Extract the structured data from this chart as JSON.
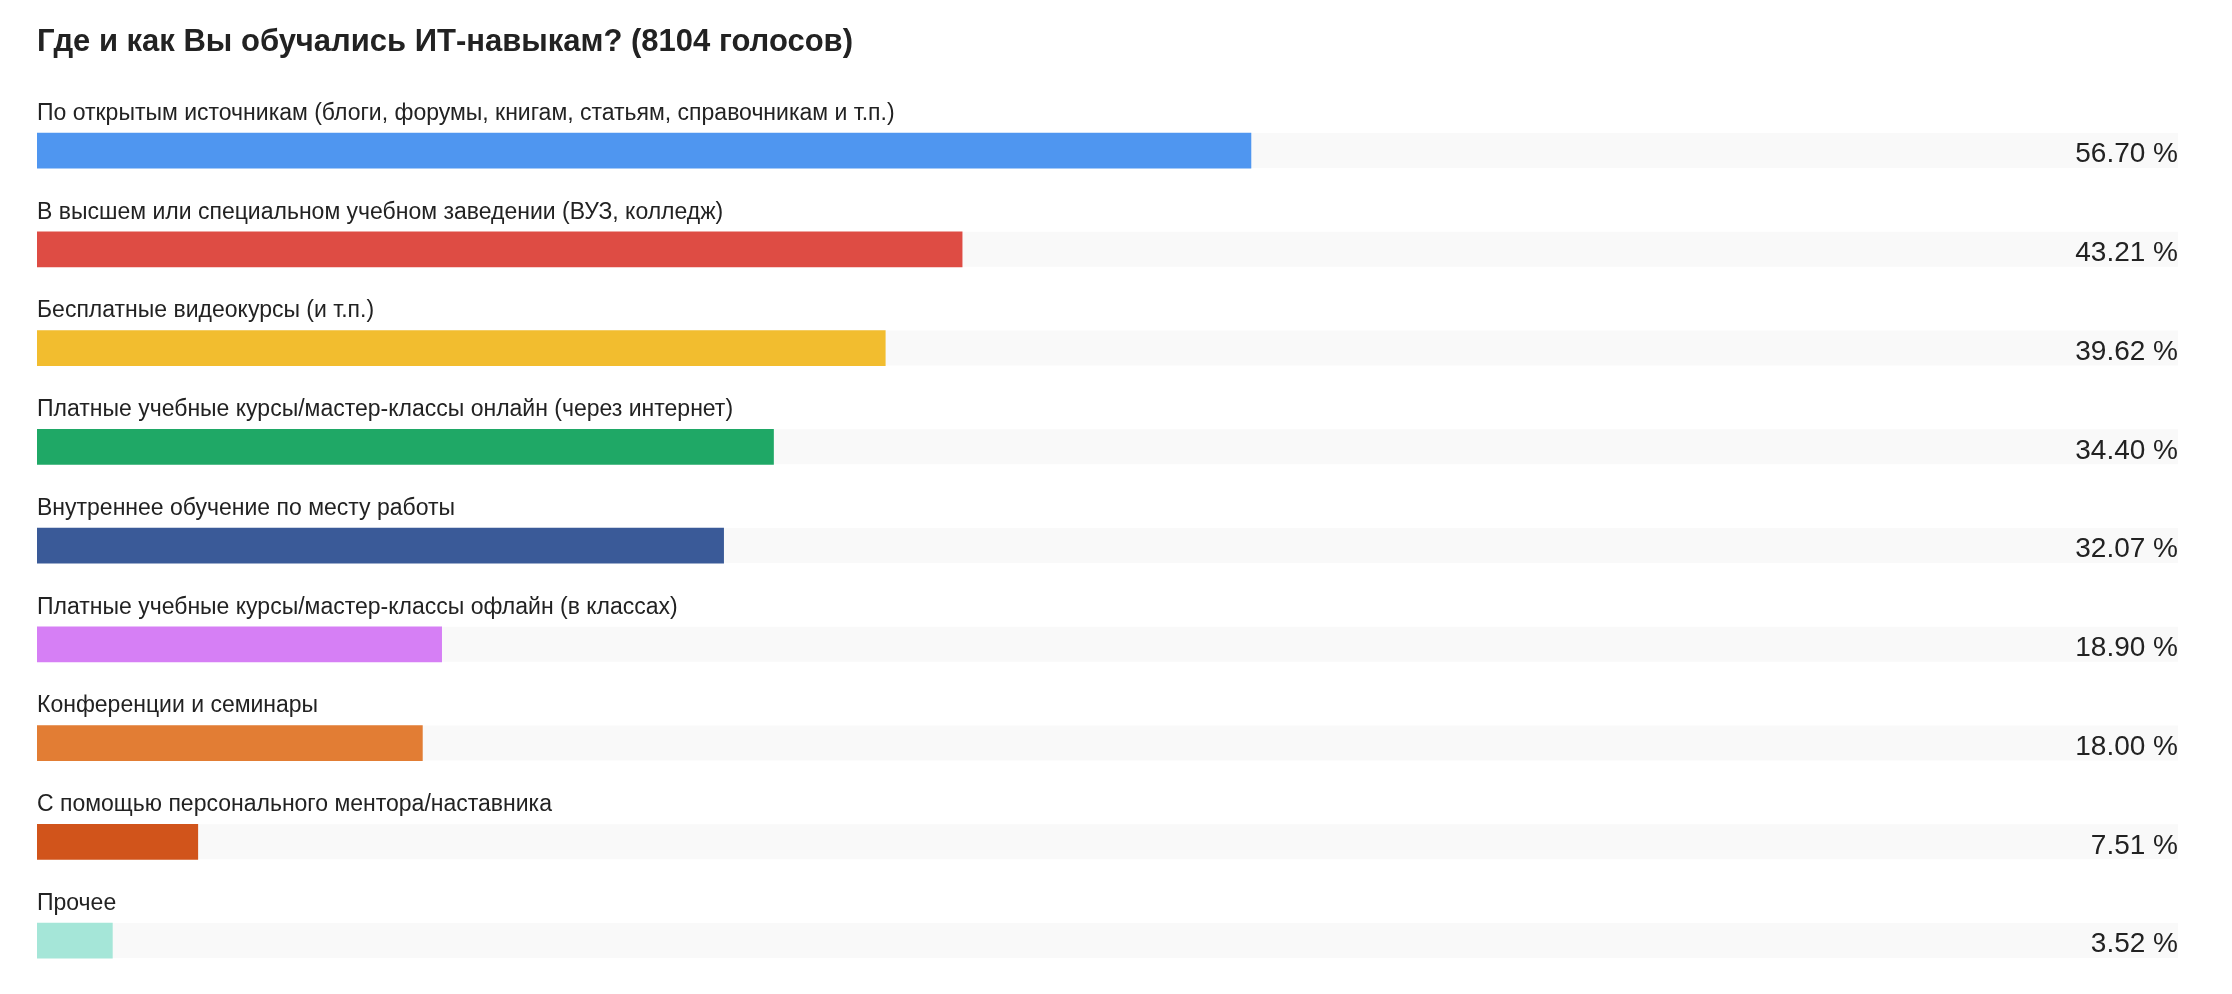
{
  "chart_data": {
    "type": "bar",
    "orientation": "horizontal",
    "title": "Где и как Вы обучались ИТ-навыкам? (8104 голосов)",
    "categories": [
      "По открытым источникам (блоги, форумы, книгам, статьям, справочникам и т.п.)",
      "В высшем или специальном учебном заведении (ВУЗ, колледж)",
      "Бесплатные видеокурсы (и т.п.)",
      "Платные учебные курсы/мастер-классы онлайн (через интернет)",
      "Внутреннее обучение по месту работы",
      "Платные учебные курсы/мастер-классы офлайн (в классах)",
      "Конференции и семинары",
      "С помощью персонального ментора/наставника",
      "Прочее"
    ],
    "values": [
      56.7,
      43.21,
      39.62,
      34.4,
      32.07,
      18.9,
      18.0,
      7.51,
      3.52
    ],
    "value_labels": [
      "56.70 %",
      "43.21 %",
      "39.62 %",
      "34.40 %",
      "32.07 %",
      "18.90 %",
      "18.00 %",
      "7.51 %",
      "3.52 %"
    ],
    "colors": [
      "#4f96f0",
      "#de4c44",
      "#f2bd2f",
      "#1fa866",
      "#3a5a98",
      "#d67ff5",
      "#e27d34",
      "#d1541b",
      "#a5e6d8"
    ],
    "xlim": [
      0,
      100
    ],
    "grid": false,
    "legend": false,
    "tick_labels": "y"
  }
}
